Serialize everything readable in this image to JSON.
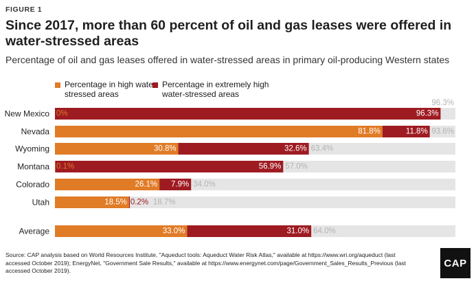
{
  "figure_label": "FIGURE 1",
  "title": "Since 2017, more than 60 percent of oil and gas leases were offered in water-stressed areas",
  "subtitle": "Percentage of oil and gas leases offered in water-stressed areas in primary oil-producing Western states",
  "source": "Source: CAP analysis based on World Resources Institute, \"Aqueduct tools: Aqueduct Water Risk Atlas,\" available at https://www.wri.org/aqueduct (last accessed October 2019);  EnergyNet, \"Government Sale Results,\" available at https://www.energynet.com/page/Government_Sales_Results_Previous (last accessed October 2019).",
  "logo": "CAP",
  "colors": {
    "high": "#e07b26",
    "extremely_high": "#9e1b22",
    "remainder": "#e5e5e5",
    "total_label": "#b3b3b3"
  },
  "chart_data": {
    "type": "bar",
    "orientation": "horizontal",
    "stacked": true,
    "xlim": [
      0,
      100
    ],
    "grid": false,
    "legend_position": "top-left",
    "categories": [
      "New Mexico",
      "Nevada",
      "Wyoming",
      "Montana",
      "Colorado",
      "Utah",
      "Average"
    ],
    "series": [
      {
        "name": "Percentage in high water-stressed areas",
        "color_key": "high",
        "values": [
          0,
          81.8,
          30.8,
          0.1,
          26.1,
          18.5,
          33.0
        ],
        "labels": [
          "0%",
          "81.8%",
          "30.8%",
          "0.1%",
          "26.1%",
          "18.5%",
          "33.0%"
        ]
      },
      {
        "name": "Percentage in extremely high water-stressed areas",
        "color_key": "extremely_high",
        "values": [
          96.3,
          11.8,
          32.6,
          56.9,
          7.9,
          0.2,
          31.0
        ],
        "labels": [
          "96.3%",
          "11.8%",
          "32.6%",
          "56.9%",
          "7.9%",
          "0.2%",
          "31.0%"
        ]
      }
    ],
    "totals": [
      96.3,
      93.6,
      63.4,
      57.0,
      34.0,
      18.7,
      64.0
    ],
    "total_labels": [
      "96.3%",
      "93.6%",
      "63.4%",
      "57.0%",
      "34.0%",
      "18.7%",
      "64.0%"
    ]
  }
}
